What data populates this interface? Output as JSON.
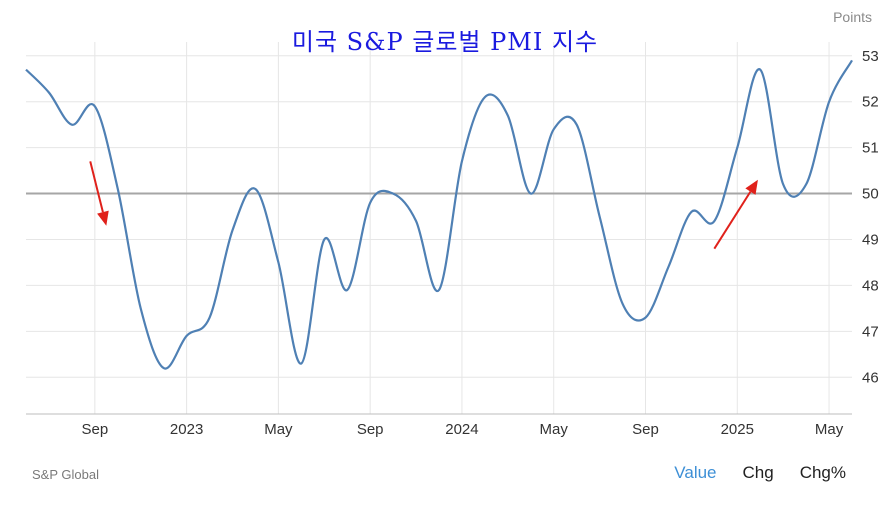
{
  "chart_data": {
    "type": "line",
    "title": "미국 S&P 글로벌 PMI 지수",
    "ylabel": "Points",
    "ylim": [
      45.2,
      53.3
    ],
    "yticks": [
      46,
      47,
      48,
      49,
      50,
      51,
      52,
      53
    ],
    "xticks": [
      {
        "t": 2.0,
        "label": "Sep"
      },
      {
        "t": 6.0,
        "label": "2023"
      },
      {
        "t": 10.0,
        "label": "May"
      },
      {
        "t": 14.0,
        "label": "Sep"
      },
      {
        "t": 18.0,
        "label": "2024"
      },
      {
        "t": 22.0,
        "label": "May"
      },
      {
        "t": 26.0,
        "label": "Sep"
      },
      {
        "t": 30.0,
        "label": "2025"
      },
      {
        "t": 34.0,
        "label": "May"
      }
    ],
    "xlim": [
      -1.0,
      35.0
    ],
    "series": [
      {
        "values": [
          [
            -1.0,
            52.7
          ],
          [
            0.0,
            52.2
          ],
          [
            1.0,
            51.5
          ],
          [
            2.0,
            51.9
          ],
          [
            3.0,
            50.1
          ],
          [
            4.0,
            47.5
          ],
          [
            5.0,
            46.2
          ],
          [
            6.0,
            46.9
          ],
          [
            7.0,
            47.3
          ],
          [
            8.0,
            49.2
          ],
          [
            9.0,
            50.1
          ],
          [
            10.0,
            48.5
          ],
          [
            11.0,
            46.3
          ],
          [
            12.0,
            49.0
          ],
          [
            13.0,
            47.9
          ],
          [
            14.0,
            49.8
          ],
          [
            15.0,
            50.0
          ],
          [
            16.0,
            49.4
          ],
          [
            17.0,
            47.9
          ],
          [
            18.0,
            50.7
          ],
          [
            19.0,
            52.1
          ],
          [
            20.0,
            51.7
          ],
          [
            21.0,
            50.0
          ],
          [
            22.0,
            51.4
          ],
          [
            23.0,
            51.5
          ],
          [
            24.0,
            49.5
          ],
          [
            25.0,
            47.6
          ],
          [
            26.0,
            47.3
          ],
          [
            27.0,
            48.4
          ],
          [
            28.0,
            49.6
          ],
          [
            29.0,
            49.4
          ],
          [
            30.0,
            51.0
          ],
          [
            31.0,
            52.7
          ],
          [
            32.0,
            50.2
          ],
          [
            33.0,
            50.2
          ],
          [
            34.0,
            52.0
          ],
          [
            35.0,
            52.9
          ]
        ]
      }
    ],
    "reference_line": 50,
    "annotations": [
      {
        "type": "arrow",
        "direction": "down",
        "from": [
          1.8,
          50.7
        ],
        "to": [
          2.5,
          49.3
        ],
        "color": "#e0211b"
      },
      {
        "type": "arrow",
        "direction": "up",
        "from": [
          29.0,
          48.8
        ],
        "to": [
          30.9,
          50.3
        ],
        "color": "#e0211b"
      }
    ],
    "grid": true,
    "legend": "none"
  },
  "header": {
    "units": "Points"
  },
  "footer": {
    "source": "S&P Global",
    "tabs": [
      {
        "label": "Value",
        "active": true
      },
      {
        "label": "Chg",
        "active": false
      },
      {
        "label": "Chg%",
        "active": false
      }
    ]
  },
  "colors": {
    "line": "#4f80b4",
    "grid": "#e6e6e6",
    "reference": "#a6a6a6",
    "arrow": "#e0211b",
    "title": "#1a1adf"
  }
}
